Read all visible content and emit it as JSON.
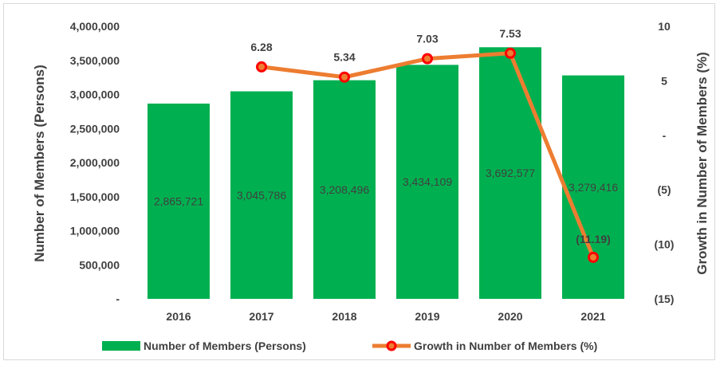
{
  "chart_data": {
    "type": "bar",
    "categories": [
      "2016",
      "2017",
      "2018",
      "2019",
      "2020",
      "2021"
    ],
    "series": [
      {
        "name": "Number of Members (Persons)",
        "type": "bar",
        "axis": "left",
        "values": [
          2865721,
          3045786,
          3208496,
          3434109,
          3692577,
          3279416
        ],
        "labels": [
          "2,865,721",
          "3,045,786",
          "3,208,496",
          "3,434,109",
          "3,692,577",
          "3,279,416"
        ],
        "color": "#00b050"
      },
      {
        "name": "Growth in Number of Members (%)",
        "type": "line",
        "axis": "right",
        "values": [
          null,
          6.28,
          5.34,
          7.03,
          7.53,
          -11.19
        ],
        "labels": [
          "",
          "6.28",
          "5.34",
          "7.03",
          "7.53",
          "(11.19)"
        ],
        "color": "#ed7d31",
        "marker_color": "#ff0000"
      }
    ],
    "y_left": {
      "label": "Number of Members (Persons)",
      "ylim": [
        0,
        4000000
      ],
      "ticks": [
        "-",
        "500,000",
        "1,000,000",
        "1,500,000",
        "2,000,000",
        "2,500,000",
        "3,000,000",
        "3,500,000",
        "4,000,000"
      ]
    },
    "y_right": {
      "label": "Growth in Number of Members (%)",
      "ylim": [
        -15,
        10
      ],
      "ticks": [
        "(15)",
        "(10)",
        "(5)",
        "-",
        "5",
        "10"
      ]
    },
    "grid": false,
    "legend": "bottom"
  }
}
